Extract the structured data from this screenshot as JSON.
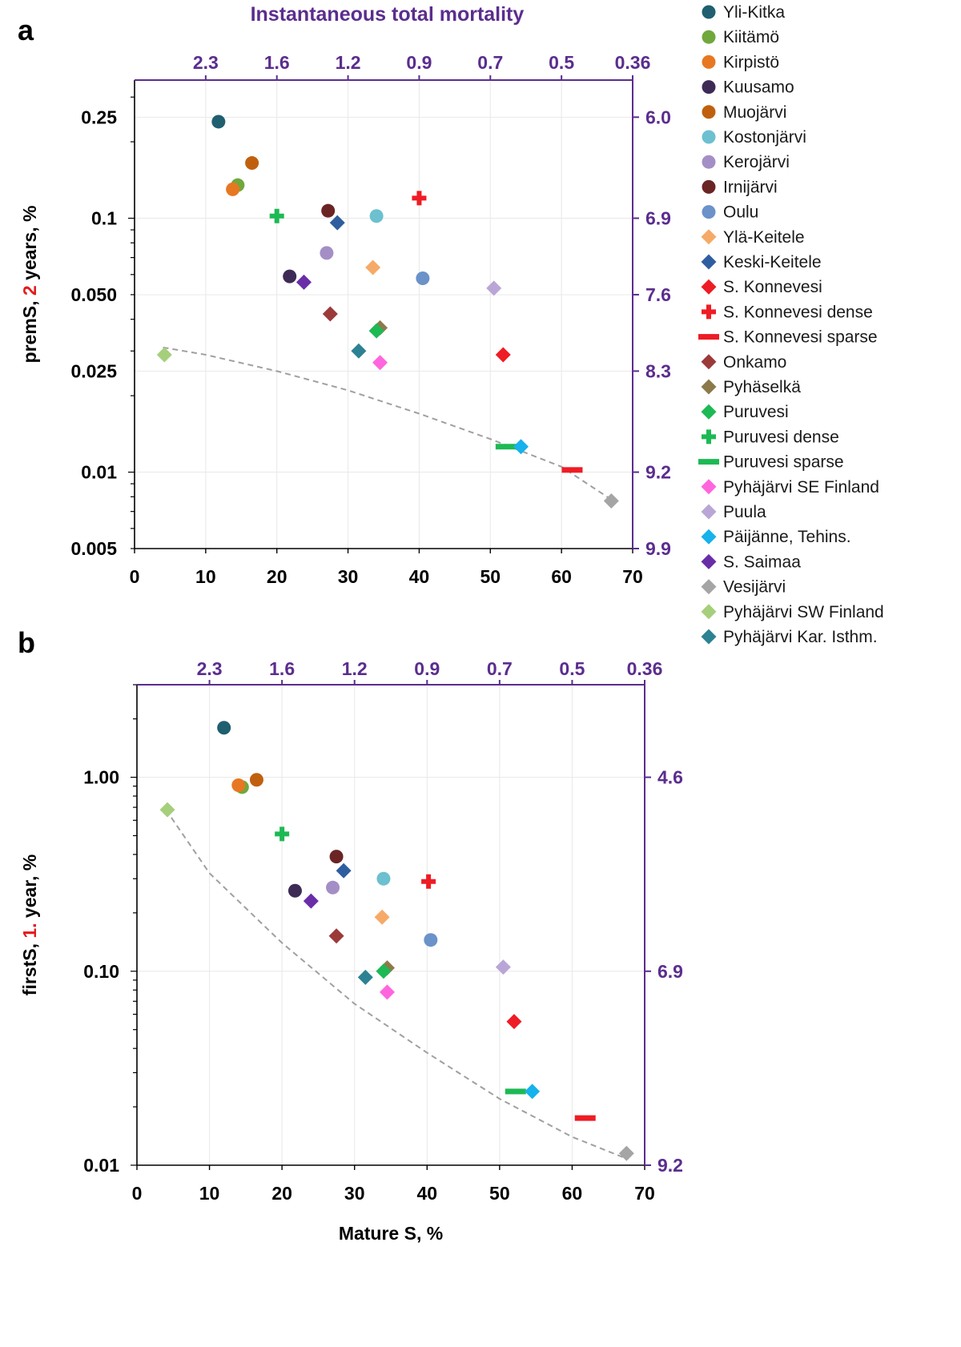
{
  "figure": {
    "panel_a": "a",
    "panel_b": "b"
  },
  "colors": {
    "purple_axis": "#5b2d8e",
    "trend": "#a0a0a0"
  },
  "legend": [
    {
      "name": "Yli-Kitka",
      "shape": "circle",
      "color": "#1f5f70"
    },
    {
      "name": "Kiitämö",
      "shape": "circle",
      "color": "#70a83c"
    },
    {
      "name": "Kirpistö",
      "shape": "circle",
      "color": "#e87722"
    },
    {
      "name": "Kuusamo",
      "shape": "circle",
      "color": "#3d2b56"
    },
    {
      "name": "Muojärvi",
      "shape": "circle",
      "color": "#c0600e"
    },
    {
      "name": "Kostonjärvi",
      "shape": "circle",
      "color": "#6cc0cf"
    },
    {
      "name": "Kerojärvi",
      "shape": "circle",
      "color": "#a48ec6"
    },
    {
      "name": "Irnijärvi",
      "shape": "circle",
      "color": "#6b2424"
    },
    {
      "name": "Oulu",
      "shape": "circle",
      "color": "#6b92c9"
    },
    {
      "name": "Ylä-Keitele",
      "shape": "diamond",
      "color": "#f6aa68"
    },
    {
      "name": "Keski-Keitele",
      "shape": "diamond",
      "color": "#2f5ea0"
    },
    {
      "name": "S. Konnevesi",
      "shape": "diamond",
      "color": "#ee1c25"
    },
    {
      "name": "S. Konnevesi dense",
      "shape": "cross",
      "color": "#ee1c25"
    },
    {
      "name": "S. Konnevesi sparse",
      "shape": "dash",
      "color": "#ee1c25"
    },
    {
      "name": "Onkamo",
      "shape": "diamond",
      "color": "#9c3a3a"
    },
    {
      "name": "Pyhäselkä",
      "shape": "diamond",
      "color": "#8c7a4a"
    },
    {
      "name": "Puruvesi",
      "shape": "diamond",
      "color": "#1db954"
    },
    {
      "name": "Puruvesi dense",
      "shape": "cross",
      "color": "#1db954"
    },
    {
      "name": "Puruvesi sparse",
      "shape": "dash",
      "color": "#1db954"
    },
    {
      "name": "Pyhäjärvi SE Finland",
      "shape": "diamond",
      "color": "#ff66dd"
    },
    {
      "name": "Puula",
      "shape": "diamond",
      "color": "#b9a6d6"
    },
    {
      "name": "Päijänne, Tehins.",
      "shape": "diamond",
      "color": "#15b2ec"
    },
    {
      "name": "S. Saimaa",
      "shape": "diamond",
      "color": "#6a2da8"
    },
    {
      "name": "Vesijärvi",
      "shape": "diamond",
      "color": "#a5a5a5"
    },
    {
      "name": "Pyhäjärvi SW Finland",
      "shape": "diamond",
      "color": "#a6cf7c"
    },
    {
      "name": "Pyhäjärvi Kar. Isthm.",
      "shape": "diamond",
      "color": "#2c8292"
    }
  ],
  "chart_data": [
    {
      "panel": "a",
      "type": "scatter",
      "title": "Instantaneous total mortality",
      "xlabel": "",
      "ylabel": {
        "pre": "premS, ",
        "highlight": "2",
        "post": " years, %"
      },
      "xlim": [
        0,
        70
      ],
      "x_ticks": [
        "0",
        "10",
        "20",
        "30",
        "40",
        "50",
        "60",
        "70"
      ],
      "ylog": true,
      "ylim": [
        0.005,
        0.35
      ],
      "y_ticks": [
        {
          "v": 0.25,
          "l": "0.25"
        },
        {
          "v": 0.1,
          "l": "0.1"
        },
        {
          "v": 0.05,
          "l": "0.050"
        },
        {
          "v": 0.025,
          "l": "0.025"
        },
        {
          "v": 0.01,
          "l": "0.01"
        },
        {
          "v": 0.005,
          "l": "0.005"
        }
      ],
      "top_ticks": [
        {
          "x": 10,
          "l": "2.3"
        },
        {
          "x": 20,
          "l": "1.6"
        },
        {
          "x": 30,
          "l": "1.2"
        },
        {
          "x": 40,
          "l": "0.9"
        },
        {
          "x": 50,
          "l": "0.7"
        },
        {
          "x": 60,
          "l": "0.5"
        },
        {
          "x": 70,
          "l": "0.36"
        }
      ],
      "right_ticks": [
        {
          "v": 0.25,
          "l": "6.0"
        },
        {
          "v": 0.1,
          "l": "6.9"
        },
        {
          "v": 0.05,
          "l": "7.6"
        },
        {
          "v": 0.025,
          "l": "8.3"
        },
        {
          "v": 0.01,
          "l": "9.2"
        },
        {
          "v": 0.005,
          "l": "9.9"
        }
      ],
      "trend": {
        "x": [
          4,
          10,
          20,
          30,
          40,
          50,
          60,
          67
        ],
        "y": [
          0.031,
          0.029,
          0.025,
          0.021,
          0.017,
          0.0135,
          0.0105,
          0.0078
        ]
      },
      "points": [
        {
          "s": "Yli-Kitka",
          "x": 11.8,
          "y": 0.24
        },
        {
          "s": "Kiitämö",
          "x": 14.5,
          "y": 0.135
        },
        {
          "s": "Kirpistö",
          "x": 13.8,
          "y": 0.13
        },
        {
          "s": "Kuusamo",
          "x": 21.8,
          "y": 0.059
        },
        {
          "s": "Muojärvi",
          "x": 16.5,
          "y": 0.165
        },
        {
          "s": "Kostonjärvi",
          "x": 34.0,
          "y": 0.102
        },
        {
          "s": "Kerojärvi",
          "x": 27.0,
          "y": 0.073
        },
        {
          "s": "Irnijärvi",
          "x": 27.2,
          "y": 0.107
        },
        {
          "s": "Oulu",
          "x": 40.5,
          "y": 0.058
        },
        {
          "s": "Ylä-Keitele",
          "x": 33.5,
          "y": 0.064
        },
        {
          "s": "Keski-Keitele",
          "x": 28.5,
          "y": 0.096
        },
        {
          "s": "S. Konnevesi",
          "x": 51.8,
          "y": 0.029
        },
        {
          "s": "S. Konnevesi dense",
          "x": 40.0,
          "y": 0.12
        },
        {
          "s": "S. Konnevesi sparse",
          "x": 61.5,
          "y": 0.0102
        },
        {
          "s": "Onkamo",
          "x": 27.5,
          "y": 0.042
        },
        {
          "s": "Pyhäselkä",
          "x": 34.5,
          "y": 0.037
        },
        {
          "s": "Puruvesi",
          "x": 34.0,
          "y": 0.036
        },
        {
          "s": "Puruvesi dense",
          "x": 20.0,
          "y": 0.102
        },
        {
          "s": "Puruvesi sparse",
          "x": 52.2,
          "y": 0.0126
        },
        {
          "s": "Pyhäjärvi SE Finland",
          "x": 34.5,
          "y": 0.027
        },
        {
          "s": "Puula",
          "x": 50.5,
          "y": 0.053
        },
        {
          "s": "Päijänne, Tehins.",
          "x": 54.3,
          "y": 0.0126
        },
        {
          "s": "S. Saimaa",
          "x": 23.8,
          "y": 0.056
        },
        {
          "s": "Vesijärvi",
          "x": 67.0,
          "y": 0.0077
        },
        {
          "s": "Pyhäjärvi SW Finland",
          "x": 4.2,
          "y": 0.029
        },
        {
          "s": "Pyhäjärvi Kar. Isthm.",
          "x": 31.5,
          "y": 0.03
        }
      ]
    },
    {
      "panel": "b",
      "type": "scatter",
      "title": "",
      "xlabel": "Mature S, %",
      "ylabel": {
        "pre": "firstS, ",
        "highlight": "1.",
        "post": " year, %"
      },
      "xlim": [
        0,
        70
      ],
      "x_ticks": [
        "0",
        "10",
        "20",
        "30",
        "40",
        "50",
        "60",
        "70"
      ],
      "ylog": true,
      "ylim": [
        0.01,
        3.0
      ],
      "y_ticks": [
        {
          "v": 1.0,
          "l": "1.00"
        },
        {
          "v": 0.1,
          "l": "0.10"
        },
        {
          "v": 0.01,
          "l": "0.01"
        }
      ],
      "top_ticks": [
        {
          "x": 10,
          "l": "2.3"
        },
        {
          "x": 20,
          "l": "1.6"
        },
        {
          "x": 30,
          "l": "1.2"
        },
        {
          "x": 40,
          "l": "0.9"
        },
        {
          "x": 50,
          "l": "0.7"
        },
        {
          "x": 60,
          "l": "0.5"
        },
        {
          "x": 70,
          "l": "0.36"
        }
      ],
      "right_ticks": [
        {
          "v": 1.0,
          "l": "4.6"
        },
        {
          "v": 0.1,
          "l": "6.9"
        },
        {
          "v": 0.01,
          "l": "9.2"
        }
      ],
      "trend": {
        "x": [
          4,
          10,
          20,
          30,
          40,
          50,
          60,
          67
        ],
        "y": [
          0.68,
          0.32,
          0.14,
          0.068,
          0.038,
          0.022,
          0.014,
          0.011
        ]
      },
      "points": [
        {
          "s": "Yli-Kitka",
          "x": 12.0,
          "y": 1.8
        },
        {
          "s": "Kiitämö",
          "x": 14.5,
          "y": 0.89
        },
        {
          "s": "Kirpistö",
          "x": 14.0,
          "y": 0.91
        },
        {
          "s": "Kuusamo",
          "x": 21.8,
          "y": 0.26
        },
        {
          "s": "Muojärvi",
          "x": 16.5,
          "y": 0.97
        },
        {
          "s": "Kostonjärvi",
          "x": 34.0,
          "y": 0.3
        },
        {
          "s": "Kerojärvi",
          "x": 27.0,
          "y": 0.27
        },
        {
          "s": "Irnijärvi",
          "x": 27.5,
          "y": 0.39
        },
        {
          "s": "Oulu",
          "x": 40.5,
          "y": 0.145
        },
        {
          "s": "Ylä-Keitele",
          "x": 33.8,
          "y": 0.19
        },
        {
          "s": "Keski-Keitele",
          "x": 28.5,
          "y": 0.33
        },
        {
          "s": "S. Konnevesi",
          "x": 52.0,
          "y": 0.055
        },
        {
          "s": "S. Konnevesi dense",
          "x": 40.2,
          "y": 0.29
        },
        {
          "s": "S. Konnevesi sparse",
          "x": 61.8,
          "y": 0.0175
        },
        {
          "s": "Onkamo",
          "x": 27.5,
          "y": 0.152
        },
        {
          "s": "Pyhäselkä",
          "x": 34.5,
          "y": 0.104
        },
        {
          "s": "Puruvesi",
          "x": 34.0,
          "y": 0.1
        },
        {
          "s": "Puruvesi dense",
          "x": 20.0,
          "y": 0.51
        },
        {
          "s": "Puruvesi sparse",
          "x": 52.2,
          "y": 0.024
        },
        {
          "s": "Pyhäjärvi SE Finland",
          "x": 34.5,
          "y": 0.078
        },
        {
          "s": "Puula",
          "x": 50.5,
          "y": 0.105
        },
        {
          "s": "Päijänne, Tehins.",
          "x": 54.5,
          "y": 0.024
        },
        {
          "s": "S. Saimaa",
          "x": 24.0,
          "y": 0.23
        },
        {
          "s": "Vesijärvi",
          "x": 67.5,
          "y": 0.0115
        },
        {
          "s": "Pyhäjärvi SW Finland",
          "x": 4.2,
          "y": 0.68
        },
        {
          "s": "Pyhäjärvi Kar. Isthm.",
          "x": 31.5,
          "y": 0.093
        }
      ]
    }
  ]
}
